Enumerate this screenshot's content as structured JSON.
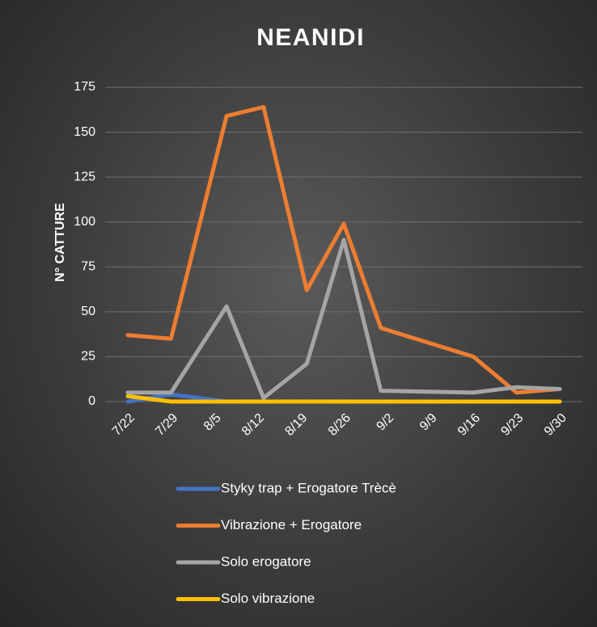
{
  "chart_data": {
    "type": "line",
    "title": "NEANIDI",
    "y_label": "N° CATTURE",
    "x": [
      "7/22",
      "7/29",
      "8/7",
      "8/13",
      "8/20",
      "8/26",
      "9/1",
      "9/16",
      "9/23",
      "9/30"
    ],
    "xticks": [
      "7/22",
      "7/29",
      "8/5",
      "8/12",
      "8/19",
      "8/26",
      "9/2",
      "9/9",
      "9/16",
      "9/23",
      "9/30"
    ],
    "ylim": [
      0,
      175
    ],
    "yticks": [
      0,
      25,
      50,
      75,
      100,
      125,
      150,
      175
    ],
    "grid": true,
    "legend": "bottom",
    "series": [
      {
        "name": "Styky trap + Erogatore Trècè",
        "color": "#4472c4",
        "values": [
          0,
          4,
          0,
          0,
          0,
          0,
          0,
          0,
          0,
          0
        ]
      },
      {
        "name": "Vibrazione + Erogatore",
        "color": "#ed7d31",
        "values": [
          37,
          35,
          159,
          164,
          62,
          99,
          41,
          25,
          5,
          7
        ]
      },
      {
        "name": "Solo erogatore",
        "color": "#a5a5a5",
        "values": [
          5,
          5,
          53,
          2,
          21,
          90,
          6,
          5,
          8,
          7
        ]
      },
      {
        "name": "Solo vibrazione",
        "color": "#ffc000",
        "values": [
          3,
          0,
          0,
          0,
          0,
          0,
          0,
          0,
          0,
          0
        ]
      }
    ]
  }
}
